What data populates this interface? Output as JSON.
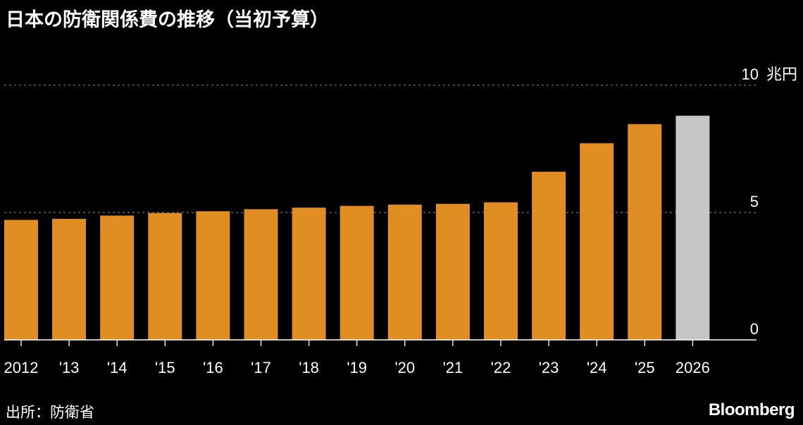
{
  "title": "日本の防衛関係費の推移（当初予算）",
  "source": "出所：防衛省",
  "brand": "Bloomberg",
  "colors": {
    "bar": "#e08e23",
    "highlight": "#c6c6c6",
    "grid": "#777777",
    "axis": "#ffffff"
  },
  "chart_data": {
    "type": "bar",
    "categories": [
      "2012",
      "'13",
      "'14",
      "'15",
      "'16",
      "'17",
      "'18",
      "'19",
      "'20",
      "'21",
      "'22",
      "'23",
      "'24",
      "'25",
      "2026"
    ],
    "values": [
      4.71,
      4.75,
      4.88,
      4.98,
      5.05,
      5.13,
      5.19,
      5.26,
      5.31,
      5.34,
      5.4,
      6.6,
      7.72,
      8.47,
      8.8
    ],
    "highlight_index": 14,
    "yticks": [
      0,
      5,
      10
    ],
    "ytick_labels": [
      "0",
      "5",
      "10"
    ],
    "y_unit": "兆円",
    "ylim": [
      0,
      10
    ],
    "grid": true
  }
}
